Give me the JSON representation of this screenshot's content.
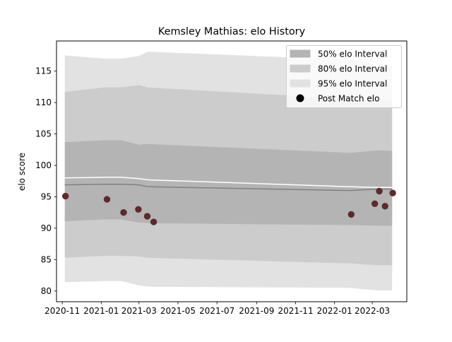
{
  "chart_data": {
    "type": "area",
    "title": "Kemsley Mathias: elo History",
    "xlabel": "",
    "ylabel": "elo score",
    "xlim": [
      "2020-10-23",
      "2022-04-24"
    ],
    "ylim": [
      78.3,
      119.8
    ],
    "grid": false,
    "legend_position": "top-right",
    "x_ticks": [
      "2020-11",
      "2021-01",
      "2021-03",
      "2021-05",
      "2021-07",
      "2021-09",
      "2021-11",
      "2022-01",
      "2022-03"
    ],
    "y_ticks": [
      80,
      85,
      90,
      95,
      100,
      105,
      110,
      115
    ],
    "band_dates": [
      "2020-11-05",
      "2021-01-05",
      "2021-02-01",
      "2021-03-01",
      "2021-03-15",
      "2022-01-25",
      "2022-03-10",
      "2022-04-01"
    ],
    "bands": [
      {
        "name": "95% elo Interval",
        "color": "#e2e2e2",
        "lower": [
          81.4,
          81.6,
          81.6,
          80.9,
          80.7,
          80.5,
          80.1,
          80.1
        ],
        "upper": [
          117.5,
          117.0,
          117.0,
          117.4,
          118.1,
          116.8,
          116.0,
          115.8
        ]
      },
      {
        "name": "80% elo Interval",
        "color": "#cccccc",
        "lower": [
          85.3,
          85.6,
          85.6,
          85.5,
          85.3,
          84.4,
          84.1,
          84.1
        ],
        "upper": [
          111.7,
          112.4,
          112.4,
          112.8,
          112.4,
          110.6,
          110.5,
          110.4
        ]
      },
      {
        "name": "50% elo Interval",
        "color": "#b4b4b4",
        "lower": [
          91.1,
          91.4,
          91.4,
          90.9,
          90.8,
          90.5,
          90.4,
          90.4
        ],
        "upper": [
          103.7,
          104.0,
          104.0,
          103.3,
          103.4,
          102.0,
          102.4,
          102.3
        ]
      }
    ],
    "median": [
      96.9,
      97.0,
      97.0,
      96.9,
      96.6,
      96.0,
      96.2,
      96.2
    ],
    "mean": [
      98.0,
      98.1,
      98.1,
      97.9,
      97.7,
      96.6,
      96.5,
      96.5
    ],
    "series": [
      {
        "name": "Post Match elo",
        "x": [
          "2020-11-06",
          "2021-01-10",
          "2021-02-05",
          "2021-02-28",
          "2021-03-14",
          "2021-03-24",
          "2022-01-27",
          "2022-03-05",
          "2022-03-12",
          "2022-03-21",
          "2022-04-02"
        ],
        "y": [
          95.1,
          94.6,
          92.5,
          93.0,
          91.9,
          91.0,
          92.2,
          93.9,
          95.9,
          93.5,
          95.6
        ]
      }
    ]
  }
}
